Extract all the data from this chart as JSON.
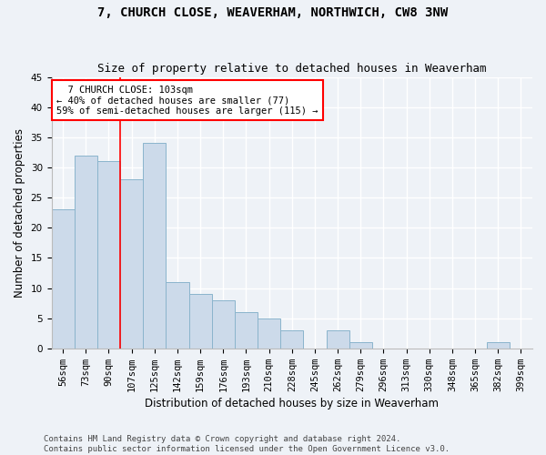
{
  "title": "7, CHURCH CLOSE, WEAVERHAM, NORTHWICH, CW8 3NW",
  "subtitle": "Size of property relative to detached houses in Weaverham",
  "xlabel": "Distribution of detached houses by size in Weaverham",
  "ylabel": "Number of detached properties",
  "categories": [
    "56sqm",
    "73sqm",
    "90sqm",
    "107sqm",
    "125sqm",
    "142sqm",
    "159sqm",
    "176sqm",
    "193sqm",
    "210sqm",
    "228sqm",
    "245sqm",
    "262sqm",
    "279sqm",
    "296sqm",
    "313sqm",
    "330sqm",
    "348sqm",
    "365sqm",
    "382sqm",
    "399sqm"
  ],
  "values": [
    23,
    32,
    31,
    28,
    34,
    11,
    9,
    8,
    6,
    5,
    3,
    0,
    3,
    1,
    0,
    0,
    0,
    0,
    0,
    1,
    0
  ],
  "bar_color": "#ccdaea",
  "bar_edge_color": "#8ab4cc",
  "ylim": [
    0,
    45
  ],
  "yticks": [
    0,
    5,
    10,
    15,
    20,
    25,
    30,
    35,
    40,
    45
  ],
  "property_label": "7 CHURCH CLOSE: 103sqm",
  "annotation_line1": "← 40% of detached houses are smaller (77)",
  "annotation_line2": "59% of semi-detached houses are larger (115) →",
  "vline_x_index": 2.5,
  "footer_line1": "Contains HM Land Registry data © Crown copyright and database right 2024.",
  "footer_line2": "Contains public sector information licensed under the Open Government Licence v3.0.",
  "background_color": "#eef2f7",
  "plot_background_color": "#eef2f7",
  "grid_color": "#ffffff",
  "title_fontsize": 10,
  "subtitle_fontsize": 9,
  "axis_label_fontsize": 8.5,
  "tick_fontsize": 7.5,
  "annotation_fontsize": 7.5,
  "footer_fontsize": 6.5
}
